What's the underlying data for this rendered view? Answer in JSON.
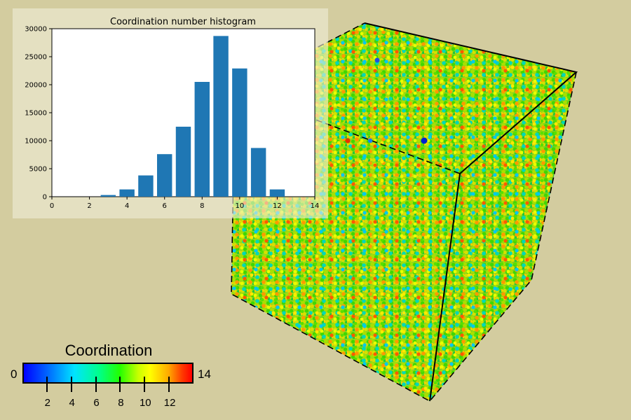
{
  "scene": {
    "view": "3d-particle-rendering",
    "colored_by": "Coordination",
    "background": "#d3cc9f",
    "cell_edge_color": "#000000"
  },
  "legend": {
    "title": "Coordination",
    "min_label": "0",
    "max_label": "14",
    "ticks": [
      "2",
      "4",
      "6",
      "8",
      "10",
      "12"
    ],
    "range": [
      0,
      14
    ],
    "colormap": "rainbow (blue → cyan → green → yellow → red)"
  },
  "chart_data": {
    "type": "bar",
    "title": "Coordination number histogram",
    "xlabel": "",
    "ylabel": "",
    "x": [
      3,
      4,
      5,
      6,
      7,
      8,
      9,
      10,
      11,
      12
    ],
    "values": [
      300,
      1300,
      3800,
      7600,
      12500,
      20500,
      28700,
      22900,
      8700,
      1300
    ],
    "xlim": [
      0,
      14
    ],
    "ylim": [
      0,
      30000
    ],
    "xticks": [
      "0",
      "2",
      "4",
      "6",
      "8",
      "10",
      "12",
      "14"
    ],
    "yticks": [
      "0",
      "5000",
      "10000",
      "15000",
      "20000",
      "25000",
      "30000"
    ],
    "bar_color": "#1f77b4",
    "grid": false
  }
}
